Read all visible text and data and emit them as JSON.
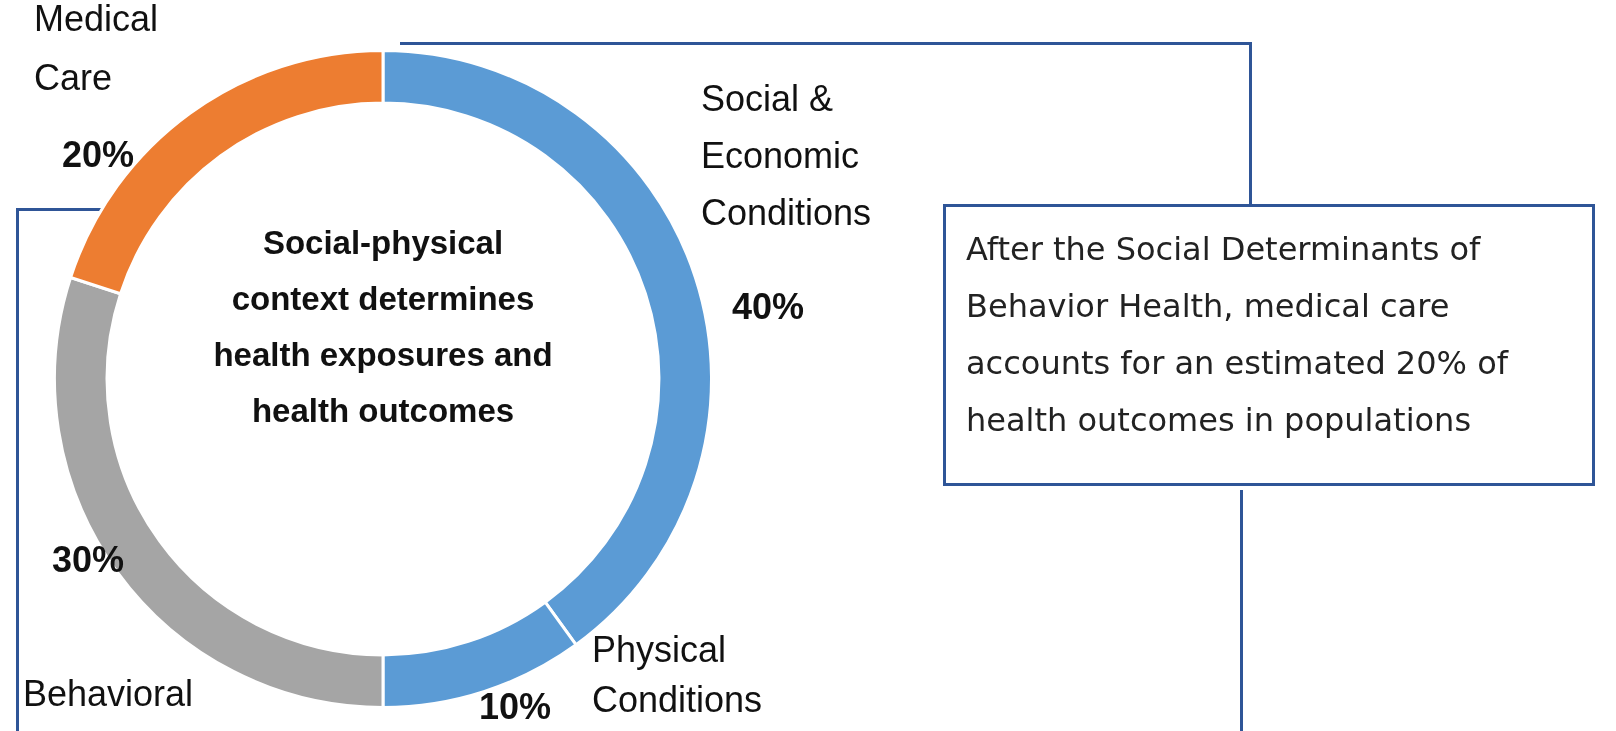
{
  "chart_data": {
    "type": "donut",
    "categories": [
      "Social & Economic Conditions",
      "Physical Conditions",
      "Behavioral",
      "Medical Care"
    ],
    "values": [
      40,
      10,
      30,
      20
    ],
    "colors": [
      "#5b9bd5",
      "#5b9bd5",
      "#a5a5a5",
      "#ed7d31"
    ],
    "value_labels": [
      "40%",
      "10%",
      "30%",
      "20%"
    ],
    "annotations": [
      "Social-physical context determines health exposures and health outcomes",
      "After the Social Determinants of Behavior Health, medical care accounts for an estimated 20% of health outcomes in populations"
    ]
  }
}
